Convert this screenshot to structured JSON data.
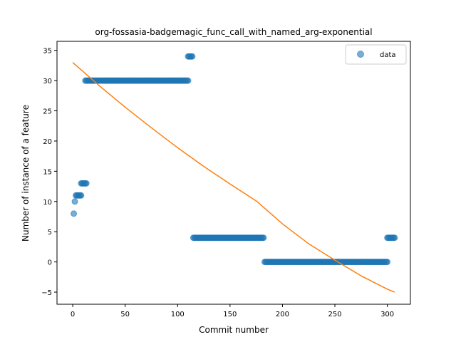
{
  "chart_data": {
    "type": "scatter",
    "title": "org-fossasia-badgemagic_func_call_with_named_arg-exponential",
    "xlabel": "Commit number",
    "ylabel": "Number of instance of a feature",
    "xlim": [
      -15,
      322
    ],
    "ylim": [
      -7,
      36.5
    ],
    "xticks": [
      0,
      50,
      100,
      150,
      200,
      250,
      300
    ],
    "yticks": [
      -5,
      0,
      5,
      10,
      15,
      20,
      25,
      30,
      35
    ],
    "grid": false,
    "legend": {
      "placement": "top-right",
      "entries": [
        "data"
      ]
    },
    "colors": {
      "data": "#1f77b4",
      "fit": "#ff7f0e"
    },
    "series": [
      {
        "name": "data",
        "kind": "scatter",
        "runs": [
          {
            "x_start": 1,
            "x_end": 1,
            "y": 8
          },
          {
            "x_start": 2,
            "x_end": 2,
            "y": 10
          },
          {
            "x_start": 3,
            "x_end": 8,
            "y": 11
          },
          {
            "x_start": 8,
            "x_end": 13,
            "y": 13
          },
          {
            "x_start": 12,
            "x_end": 110,
            "y": 30
          },
          {
            "x_start": 110,
            "x_end": 114,
            "y": 34
          },
          {
            "x_start": 115,
            "x_end": 182,
            "y": 4
          },
          {
            "x_start": 183,
            "x_end": 300,
            "y": 0
          },
          {
            "x_start": 300,
            "x_end": 307,
            "y": 4
          }
        ]
      },
      {
        "kind": "line",
        "points": [
          [
            0,
            33
          ],
          [
            25,
            29.2
          ],
          [
            50,
            25.6
          ],
          [
            75,
            22.2
          ],
          [
            100,
            18.9
          ],
          [
            125,
            15.8
          ],
          [
            150,
            12.9
          ],
          [
            175,
            10.1
          ],
          [
            200,
            6.3
          ],
          [
            225,
            3.0
          ],
          [
            250,
            0.3
          ],
          [
            275,
            -2.3
          ],
          [
            300,
            -4.5
          ],
          [
            307,
            -5.0
          ]
        ]
      }
    ]
  }
}
